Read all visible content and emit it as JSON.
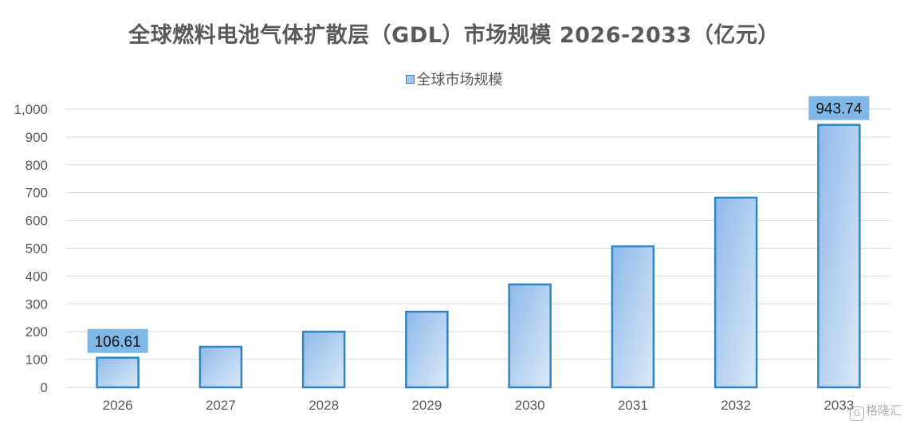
{
  "chart_data": {
    "type": "bar",
    "title": "全球燃料电池气体扩散层（GDL）市场规模 2026-2033（亿元）",
    "xlabel": "",
    "ylabel": "",
    "categories": [
      "2026",
      "2027",
      "2028",
      "2029",
      "2030",
      "2031",
      "2032",
      "2033"
    ],
    "series": [
      {
        "name": "全球市场规模",
        "values": [
          106.61,
          146,
          200,
          272,
          370,
          507,
          682,
          943.74
        ]
      }
    ],
    "data_labels": [
      {
        "index": 0,
        "text": "106.61"
      },
      {
        "index": 7,
        "text": "943.74"
      }
    ],
    "ylim": [
      0,
      1000
    ],
    "yticks": [
      0,
      100,
      200,
      300,
      400,
      500,
      600,
      700,
      800,
      900,
      1000
    ],
    "ytick_labels": [
      "0",
      "100",
      "200",
      "300",
      "400",
      "500",
      "600",
      "700",
      "800",
      "900",
      "1,000"
    ],
    "grid": true,
    "legend_position": "top"
  },
  "colors": {
    "bar_fill_top": "#8db9ea",
    "bar_fill_bottom": "#dce9f8",
    "bar_stroke": "#2e86c1",
    "label_box": "#7fb8e6",
    "grid": "#d9d9d9",
    "text": "#595959"
  },
  "watermark": {
    "icon": "G",
    "text": "格隆汇"
  }
}
